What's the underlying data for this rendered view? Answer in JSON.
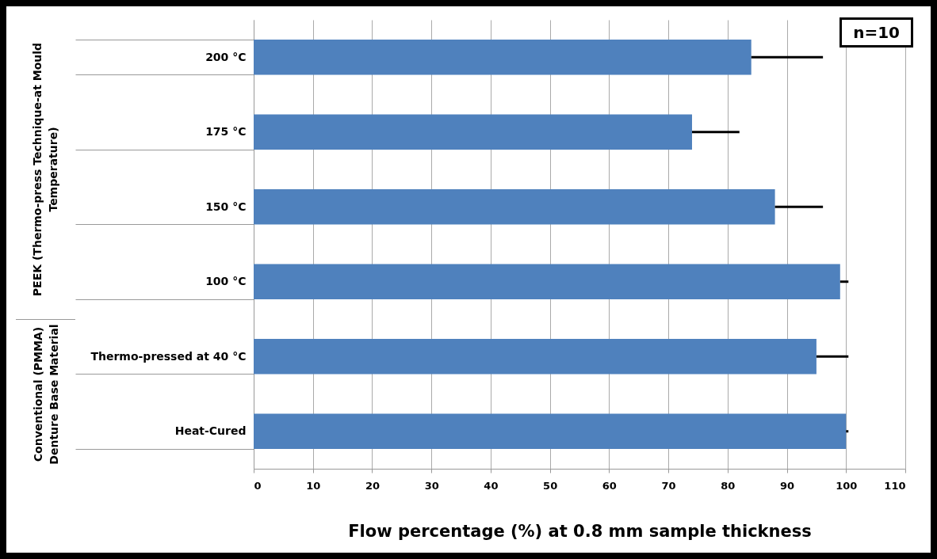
{
  "chart_data": {
    "type": "bar",
    "orientation": "horizontal",
    "xlabel": "Flow percentage (%) at 0.8 mm sample thickness",
    "categories": [
      "200 °C",
      "175 °C",
      "150 °C",
      "100 °C",
      "Thermo-pressed at  40 °C",
      "Heat-Cured"
    ],
    "values": [
      84,
      74,
      88,
      99,
      95,
      100
    ],
    "errors": [
      [
        84,
        96.1
      ],
      [
        74,
        82
      ],
      [
        88,
        96.1
      ],
      [
        99,
        100.4
      ],
      [
        95,
        100.4
      ],
      [
        100,
        100.4
      ]
    ],
    "color": "#4f81bd",
    "xlim": [
      0,
      110
    ],
    "xticks": [
      0,
      10,
      20,
      30,
      40,
      50,
      60,
      70,
      80,
      90,
      100,
      110
    ],
    "grid": "x",
    "annotations": [
      "PEEK (Thermo-press Technique-at Mould Temperature)",
      "Conventional (PMMA) Denture Base Material",
      "n=10"
    ]
  }
}
